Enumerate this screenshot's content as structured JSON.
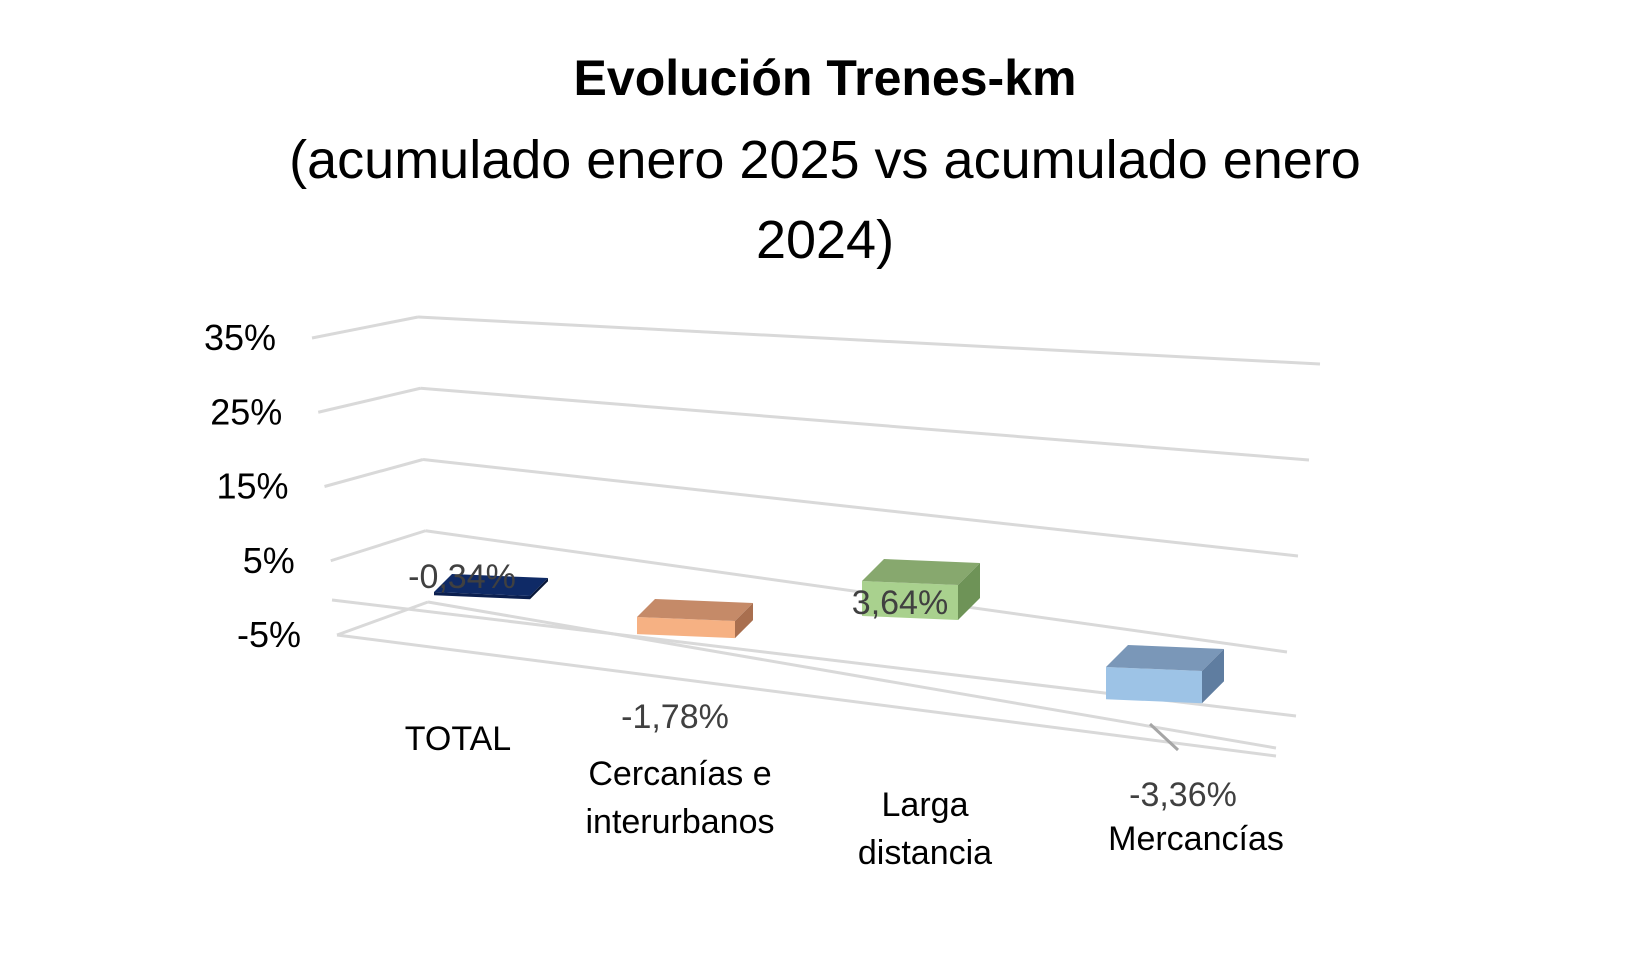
{
  "chart_data": {
    "type": "bar",
    "title": "Evolución Trenes-km",
    "subtitle": "(acumulado enero 2025 vs acumulado enero 2024)",
    "categories": [
      "TOTAL",
      "Cercanías e interurbanos",
      "Larga distancia",
      "Mercancías"
    ],
    "category_lines": [
      [
        "TOTAL"
      ],
      [
        "Cercanías e",
        "interurbanos"
      ],
      [
        "Larga",
        "distancia"
      ],
      [
        "Mercancías"
      ]
    ],
    "values": [
      -0.34,
      -1.78,
      3.64,
      -3.36
    ],
    "value_labels": [
      "-0,34%",
      "-1,78%",
      "3,64%",
      "-3,36%"
    ],
    "y_ticks": [
      -5,
      5,
      15,
      25,
      35
    ],
    "y_tick_labels": [
      "-5%",
      "5%",
      "15%",
      "25%",
      "35%"
    ],
    "ylim": [
      -5,
      35
    ],
    "grid": true,
    "legend": "none",
    "colors": {
      "bars": [
        {
          "front": "#0b1f4f",
          "top": "#0f2a66",
          "side": "#081739"
        },
        {
          "front": "#f6b183",
          "top": "#c58a68",
          "side": "#a96f4f"
        },
        {
          "front": "#a9d18e",
          "top": "#87a86e",
          "side": "#6e9357"
        },
        {
          "front": "#9dc3e6",
          "top": "#7a97b8",
          "side": "#5f7da0"
        }
      ],
      "grid": "#d9d9d9",
      "tick_text": "#000000",
      "value_text": "#404040"
    }
  }
}
